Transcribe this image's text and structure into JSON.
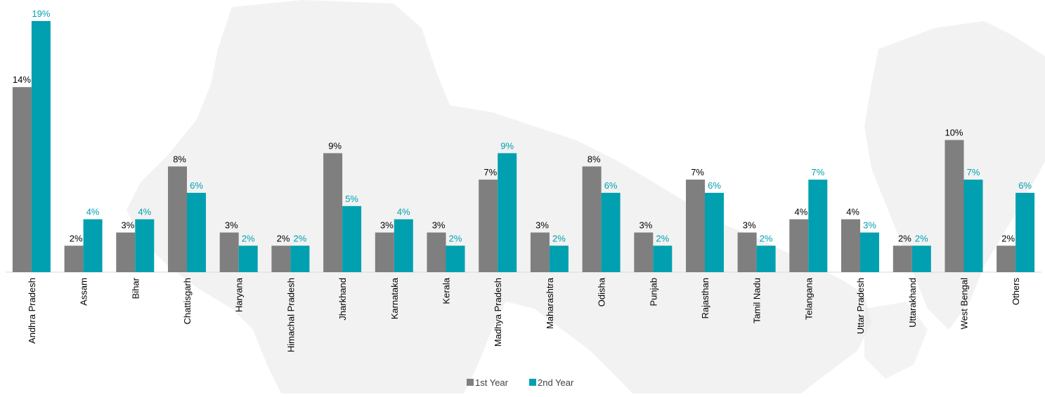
{
  "chart_data": {
    "type": "bar",
    "categories": [
      "Andhra Pradesh",
      "Assam",
      "Bihar",
      "Chattisgarh",
      "Haryana",
      "Himachal Pradesh",
      "Jharkhand",
      "Karnataka",
      "Kerala",
      "Madhya Pradesh",
      "Maharashtra",
      "Odisha",
      "Punjab",
      "Rajasthan",
      "Tamil Nadu",
      "Telangana",
      "Uttar Pradesh",
      "Uttarakhand",
      "West Bengal",
      "Others"
    ],
    "series": [
      {
        "name": "1st Year",
        "color": "#7f7f7f",
        "label_color": "#000000",
        "values": [
          14,
          2,
          3,
          8,
          3,
          2,
          9,
          3,
          3,
          7,
          3,
          8,
          3,
          7,
          3,
          4,
          4,
          2,
          10,
          2
        ]
      },
      {
        "name": "2nd Year",
        "color": "#00a0b0",
        "label_color": "#00a0b0",
        "values": [
          19,
          4,
          4,
          6,
          2,
          2,
          5,
          4,
          2,
          9,
          2,
          6,
          2,
          6,
          2,
          7,
          3,
          2,
          7,
          6
        ]
      }
    ],
    "value_suffix": "%",
    "ylim": [
      0,
      19
    ],
    "grid": false,
    "legend_position": "bottom-center",
    "title": "",
    "xlabel": "",
    "ylabel": ""
  }
}
